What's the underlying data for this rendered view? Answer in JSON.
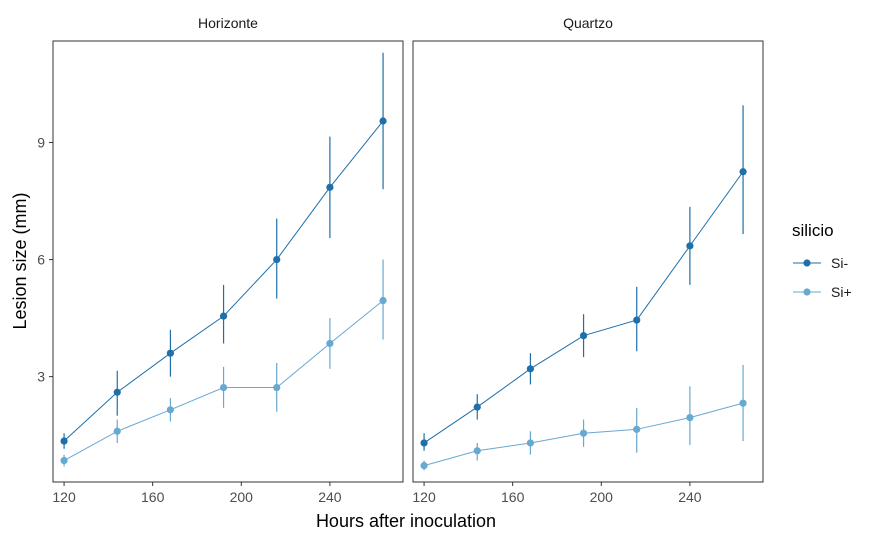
{
  "chart_data": {
    "type": "line",
    "xlabel": "Hours after inoculation",
    "ylabel": "Lesion size (mm)",
    "x_ticks": [
      120,
      160,
      200,
      240
    ],
    "y_ticks": [
      3,
      6,
      9
    ],
    "xlim": [
      115,
      273
    ],
    "ylim": [
      0.3,
      11.6
    ],
    "x": [
      120,
      144,
      168,
      192,
      216,
      240,
      264
    ],
    "legend": {
      "title": "silicio",
      "position": "right"
    },
    "panels": [
      {
        "title": "Horizonte",
        "series": [
          {
            "name": "Si-",
            "color": "#1f6fa8",
            "values": [
              1.35,
              2.6,
              3.6,
              4.55,
              6.0,
              7.85,
              9.55
            ],
            "error_low": [
              1.15,
              2.0,
              3.0,
              3.85,
              5.0,
              6.55,
              7.8
            ],
            "error_high": [
              1.55,
              3.15,
              4.2,
              5.35,
              7.05,
              9.15,
              11.3
            ]
          },
          {
            "name": "Si+",
            "color": "#67a9d1",
            "values": [
              0.85,
              1.6,
              2.15,
              2.72,
              2.72,
              3.85,
              4.95
            ],
            "error_low": [
              0.7,
              1.3,
              1.85,
              2.2,
              2.1,
              3.2,
              3.95
            ],
            "error_high": [
              1.0,
              1.9,
              2.45,
              3.25,
              3.35,
              4.5,
              6.0
            ]
          }
        ]
      },
      {
        "title": "Quartzo",
        "series": [
          {
            "name": "Si-",
            "color": "#1f6fa8",
            "values": [
              1.3,
              2.22,
              3.2,
              4.05,
              4.45,
              6.35,
              8.25
            ],
            "error_low": [
              1.1,
              1.9,
              2.8,
              3.5,
              3.65,
              5.35,
              6.65
            ],
            "error_high": [
              1.55,
              2.55,
              3.6,
              4.6,
              5.3,
              7.35,
              9.95
            ]
          },
          {
            "name": "Si+",
            "color": "#67a9d1",
            "values": [
              0.72,
              1.1,
              1.3,
              1.55,
              1.65,
              1.95,
              2.32
            ],
            "error_low": [
              0.6,
              0.85,
              1.0,
              1.2,
              1.05,
              1.25,
              1.35
            ],
            "error_high": [
              0.85,
              1.3,
              1.6,
              1.9,
              2.2,
              2.75,
              3.3
            ]
          }
        ]
      }
    ]
  }
}
